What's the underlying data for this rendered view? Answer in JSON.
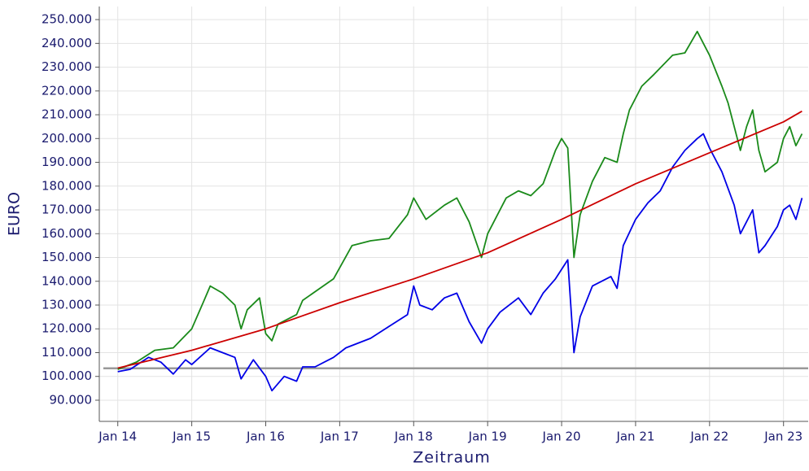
{
  "chart_data": {
    "type": "line",
    "xlabel": "Zeitraum",
    "ylabel": "EURO",
    "xlim": [
      "2013-10",
      "2023-05"
    ],
    "xticks": [
      {
        "value": "2014-01",
        "label": "Jan 14"
      },
      {
        "value": "2015-01",
        "label": "Jan 15"
      },
      {
        "value": "2016-01",
        "label": "Jan 16"
      },
      {
        "value": "2017-01",
        "label": "Jan 17"
      },
      {
        "value": "2018-01",
        "label": "Jan 18"
      },
      {
        "value": "2019-01",
        "label": "Jan 19"
      },
      {
        "value": "2020-01",
        "label": "Jan 20"
      },
      {
        "value": "2021-01",
        "label": "Jan 21"
      },
      {
        "value": "2022-01",
        "label": "Jan 22"
      },
      {
        "value": "2023-01",
        "label": "Jan 23"
      }
    ],
    "ylim": [
      81100,
      255500
    ],
    "yticks": [
      {
        "value": 90000,
        "label": "90.000"
      },
      {
        "value": 100000,
        "label": "100.000"
      },
      {
        "value": 110000,
        "label": "110.000"
      },
      {
        "value": 120000,
        "label": "120.000"
      },
      {
        "value": 130000,
        "label": "130.000"
      },
      {
        "value": 140000,
        "label": "140.000"
      },
      {
        "value": 150000,
        "label": "150.000"
      },
      {
        "value": 160000,
        "label": "160.000"
      },
      {
        "value": 170000,
        "label": "170.000"
      },
      {
        "value": 180000,
        "label": "180.000"
      },
      {
        "value": 190000,
        "label": "190.000"
      },
      {
        "value": 200000,
        "label": "200.000"
      },
      {
        "value": 210000,
        "label": "210.000"
      },
      {
        "value": 220000,
        "label": "220.000"
      },
      {
        "value": 230000,
        "label": "230.000"
      },
      {
        "value": 240000,
        "label": "240.000"
      },
      {
        "value": 250000,
        "label": "250.000"
      }
    ],
    "grid": true,
    "hline": {
      "value": 103400,
      "color": "#999999"
    },
    "series": [
      {
        "color": "#1a8a1a",
        "x": [
          "2014-01",
          "2014-04",
          "2014-07",
          "2014-10",
          "2015-01",
          "2015-03",
          "2015-04",
          "2015-06",
          "2015-08",
          "2015-09",
          "2015-10",
          "2015-12",
          "2016-01",
          "2016-02",
          "2016-03",
          "2016-06",
          "2016-07",
          "2016-12",
          "2017-03",
          "2017-06",
          "2017-09",
          "2017-12",
          "2018-01",
          "2018-03",
          "2018-06",
          "2018-08",
          "2018-10",
          "2018-12",
          "2019-01",
          "2019-04",
          "2019-06",
          "2019-08",
          "2019-10",
          "2019-12",
          "2020-01",
          "2020-02",
          "2020-03",
          "2020-04",
          "2020-06",
          "2020-08",
          "2020-10",
          "2020-11",
          "2020-12",
          "2021-02",
          "2021-04",
          "2021-07",
          "2021-09",
          "2021-11",
          "2021-12",
          "2022-01",
          "2022-03",
          "2022-04",
          "2022-06",
          "2022-07",
          "2022-08",
          "2022-09",
          "2022-10",
          "2022-12",
          "2023-01",
          "2023-02",
          "2023-03",
          "2023-04"
        ],
        "values": [
          103000,
          106000,
          111000,
          112000,
          120000,
          132000,
          138000,
          135000,
          130000,
          120000,
          128000,
          133000,
          118000,
          115000,
          122000,
          126000,
          132000,
          141000,
          155000,
          157000,
          158000,
          168000,
          175000,
          166000,
          172000,
          175000,
          165000,
          150000,
          160000,
          175000,
          178000,
          176000,
          181000,
          195000,
          200000,
          196000,
          150000,
          168000,
          182000,
          192000,
          190000,
          202000,
          212000,
          222000,
          227000,
          235000,
          236000,
          245000,
          240000,
          235000,
          222000,
          215000,
          195000,
          205000,
          212000,
          195000,
          186000,
          190000,
          200000,
          205000,
          197000,
          202000
        ]
      },
      {
        "color": "#0000e6",
        "x": [
          "2014-01",
          "2014-03",
          "2014-06",
          "2014-08",
          "2014-10",
          "2014-12",
          "2015-01",
          "2015-04",
          "2015-06",
          "2015-08",
          "2015-09",
          "2015-11",
          "2016-01",
          "2016-02",
          "2016-04",
          "2016-06",
          "2016-07",
          "2016-09",
          "2016-12",
          "2017-02",
          "2017-06",
          "2017-09",
          "2017-12",
          "2018-01",
          "2018-02",
          "2018-04",
          "2018-06",
          "2018-08",
          "2018-10",
          "2018-12",
          "2019-01",
          "2019-03",
          "2019-06",
          "2019-08",
          "2019-10",
          "2019-12",
          "2020-02",
          "2020-03",
          "2020-04",
          "2020-06",
          "2020-09",
          "2020-10",
          "2020-11",
          "2021-01",
          "2021-03",
          "2021-05",
          "2021-07",
          "2021-09",
          "2021-11",
          "2021-12",
          "2022-01",
          "2022-03",
          "2022-05",
          "2022-06",
          "2022-08",
          "2022-09",
          "2022-10",
          "2022-12",
          "2023-01",
          "2023-02",
          "2023-03",
          "2023-04"
        ],
        "values": [
          102000,
          103000,
          108000,
          106000,
          101000,
          107000,
          105000,
          112000,
          110000,
          108000,
          99000,
          107000,
          100000,
          94000,
          100000,
          98000,
          104000,
          104000,
          108000,
          112000,
          116000,
          121000,
          126000,
          138000,
          130000,
          128000,
          133000,
          135000,
          123000,
          114000,
          120000,
          127000,
          133000,
          126000,
          135000,
          141000,
          149000,
          110000,
          125000,
          138000,
          142000,
          137000,
          155000,
          166000,
          173000,
          178000,
          188000,
          195000,
          200000,
          202000,
          196000,
          186000,
          172000,
          160000,
          170000,
          152000,
          155000,
          163000,
          170000,
          172000,
          166000,
          175000
        ]
      },
      {
        "color": "#cc0000",
        "x": [
          "2014-01",
          "2015-01",
          "2016-01",
          "2017-01",
          "2018-01",
          "2019-01",
          "2020-01",
          "2021-01",
          "2022-01",
          "2023-01",
          "2023-04"
        ],
        "values": [
          103500,
          111000,
          120000,
          131000,
          141000,
          152000,
          166000,
          181000,
          194000,
          207000,
          211500
        ]
      }
    ]
  }
}
